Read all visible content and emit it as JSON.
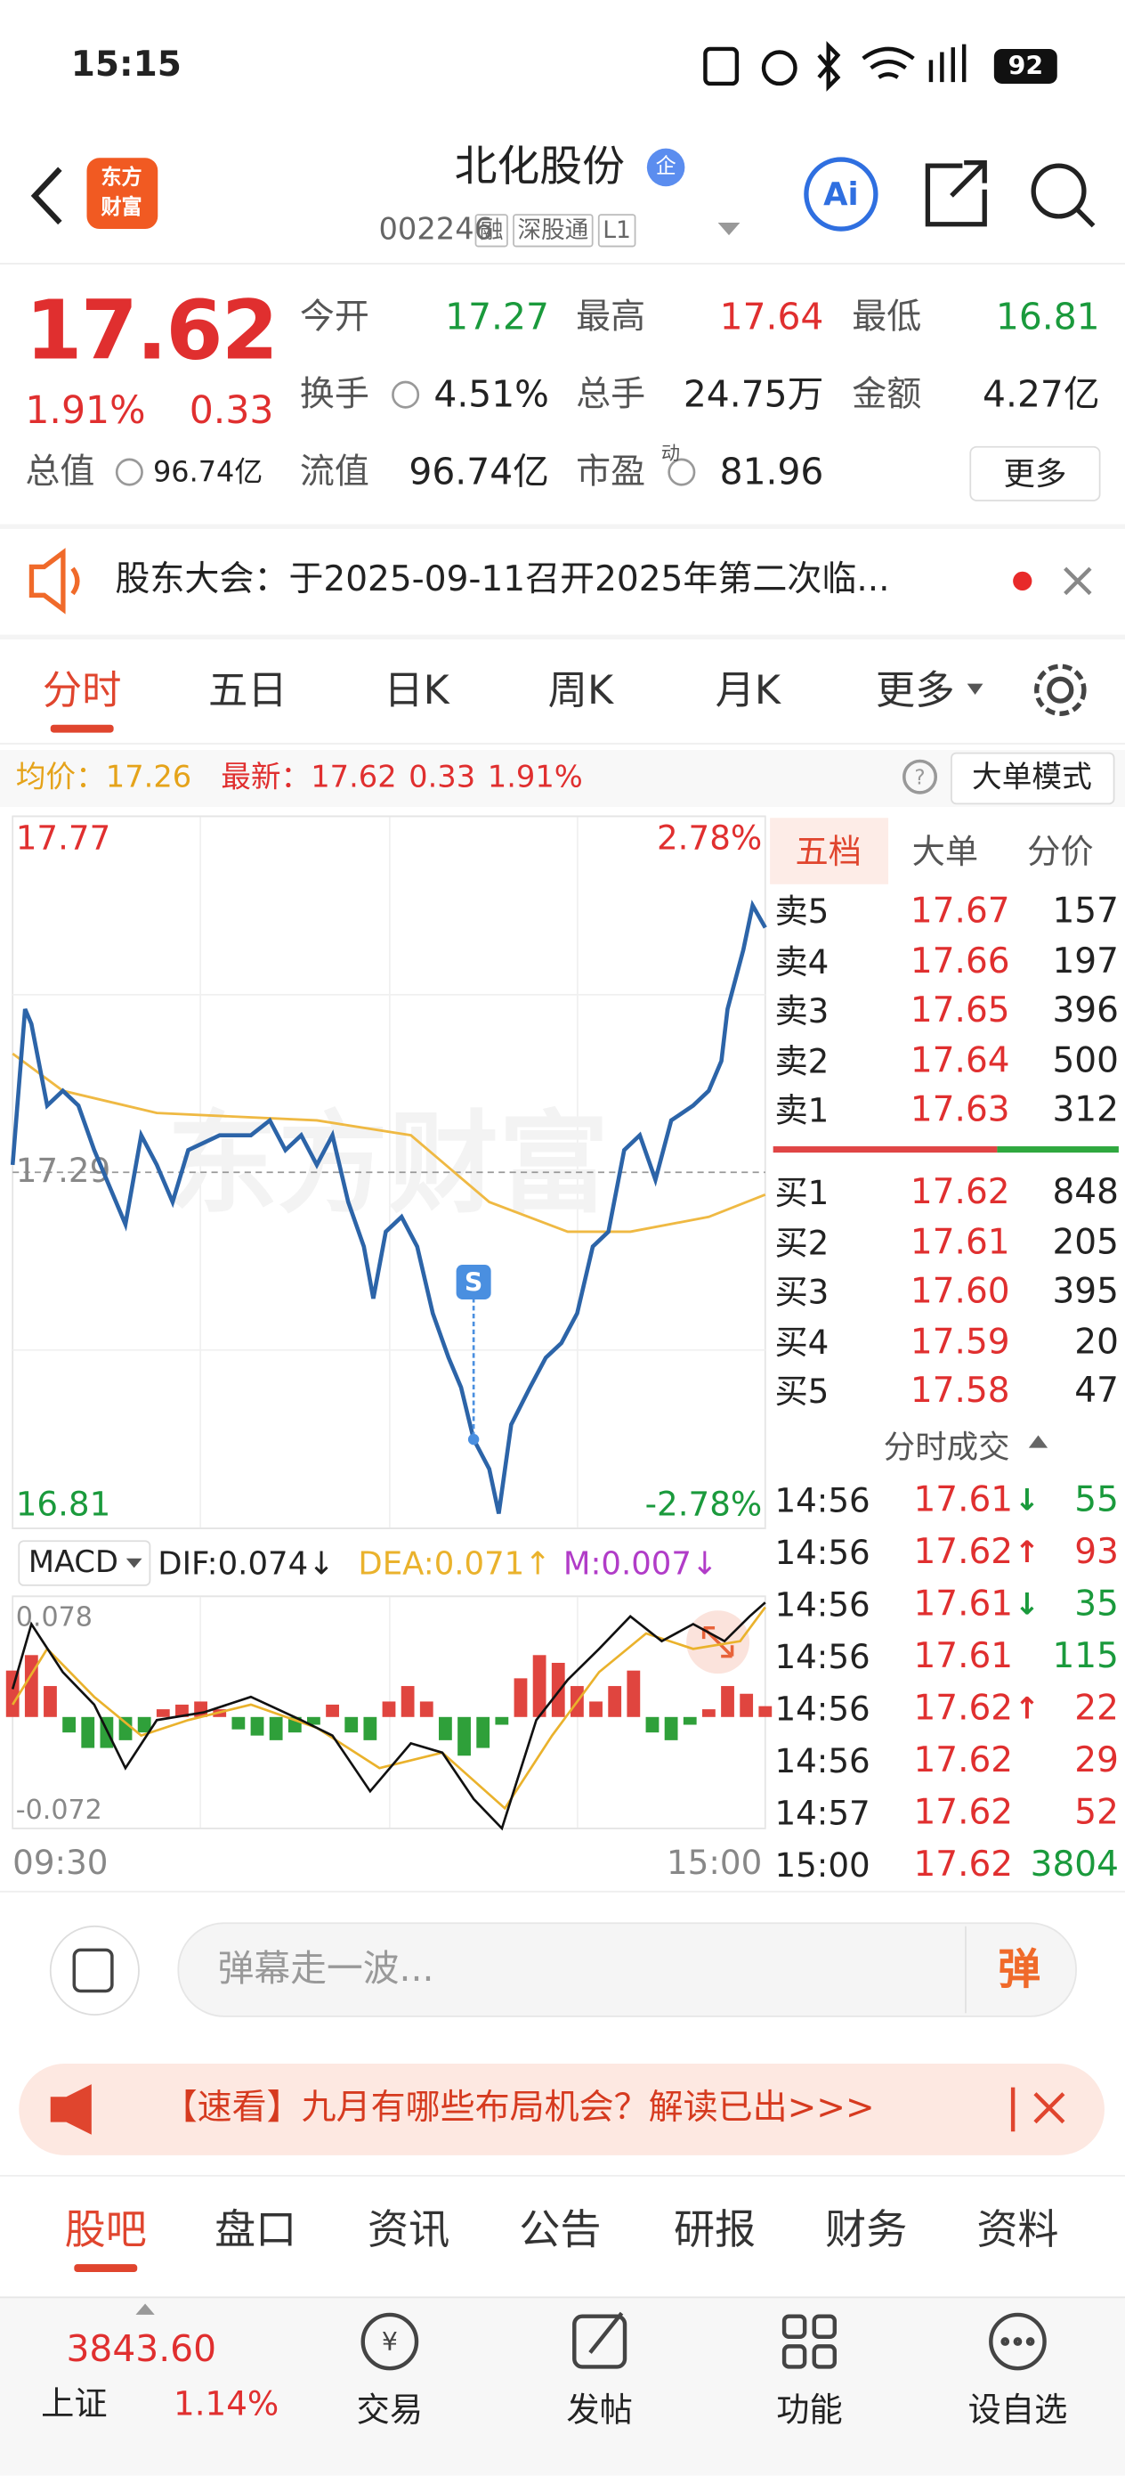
{
  "status": {
    "time": "15:15",
    "battery": "92"
  },
  "header": {
    "logo": [
      "东方",
      "财富"
    ],
    "title": "北化股份",
    "badge": "企",
    "code": "002246",
    "tags": [
      "融",
      "深股通",
      "L1"
    ]
  },
  "quote": {
    "price": "17.62",
    "pct": "1.91%",
    "change": "0.33",
    "total_label": "总值",
    "total_value": "96.74亿",
    "fields": [
      {
        "label": "今开",
        "value": "17.27"
      },
      {
        "label": "最高",
        "value": "17.64"
      },
      {
        "label": "最低",
        "value": "16.81"
      },
      {
        "label": "换手",
        "value": "4.51%"
      },
      {
        "label": "总手",
        "value": "24.75万"
      },
      {
        "label": "金额",
        "value": "4.27亿"
      },
      {
        "label": "流值",
        "value": "96.74亿"
      },
      {
        "label": "市盈",
        "sup": "动",
        "value": "81.96"
      }
    ],
    "more": "更多"
  },
  "notice": "股东大会：于2025-09-11召开2025年第二次临...",
  "tabs": [
    "分时",
    "五日",
    "日K",
    "周K",
    "月K",
    "更多"
  ],
  "info": {
    "avg_label": "均价：",
    "avg": "17.26",
    "latest_label": "最新：",
    "latest": "17.62",
    "change": "0.33",
    "pct": "1.91%",
    "mode": "大单模式"
  },
  "intraday": {
    "type": "line",
    "xlim": [
      0,
      240
    ],
    "ylim": [
      16.81,
      17.77
    ],
    "yticks": [
      16.81,
      17.29,
      17.77
    ],
    "xlabels": [
      "09:30",
      "15:00"
    ],
    "pct_top": "2.78%",
    "pct_bottom": "-2.78%",
    "watermark": "东方财富",
    "signal": "S",
    "series": [
      {
        "color": "#2c64a8",
        "x": [
          0,
          4,
          6,
          11,
          16,
          21,
          26,
          31,
          36,
          41,
          46,
          51,
          56,
          66,
          76,
          82,
          87,
          92,
          97,
          102,
          107,
          112,
          115,
          119,
          124,
          129,
          134,
          139,
          143,
          147,
          152,
          155,
          159,
          165,
          170,
          175,
          180,
          185,
          190,
          195,
          200,
          205,
          210,
          217,
          222,
          226,
          228,
          233,
          236,
          240
        ],
        "values": [
          17.3,
          17.51,
          17.49,
          17.38,
          17.4,
          17.38,
          17.32,
          17.27,
          17.22,
          17.34,
          17.3,
          17.25,
          17.32,
          17.34,
          17.34,
          17.36,
          17.32,
          17.34,
          17.3,
          17.34,
          17.25,
          17.19,
          17.12,
          17.21,
          17.23,
          17.19,
          17.1,
          17.04,
          17.0,
          16.93,
          16.89,
          16.83,
          16.95,
          17.0,
          17.04,
          17.06,
          17.1,
          17.19,
          17.21,
          17.32,
          17.34,
          17.28,
          17.36,
          17.38,
          17.4,
          17.44,
          17.51,
          17.59,
          17.65,
          17.62
        ]
      },
      {
        "color": "#efb943",
        "x": [
          0,
          16,
          46,
          97,
          127,
          152,
          177,
          197,
          222,
          240
        ],
        "values": [
          17.45,
          17.4,
          17.37,
          17.36,
          17.34,
          17.25,
          17.21,
          17.21,
          17.23,
          17.26
        ]
      }
    ]
  },
  "macd": {
    "type": "line",
    "selector": "MACD",
    "dif": "DIF:0.074↓",
    "dea": "DEA:0.071↑",
    "m": "M:0.007↓",
    "xlim": [
      0,
      240
    ],
    "ylim": [
      -0.072,
      0.078
    ],
    "yticks": [
      -0.072,
      0.078
    ],
    "series": [
      {
        "color": "#111111",
        "x": [
          0,
          6,
          16,
          26,
          36,
          46,
          61,
          76,
          92,
          102,
          114,
          127,
          137,
          147,
          156,
          167,
          177,
          187,
          197,
          207,
          217,
          227,
          235,
          240
        ],
        "values": [
          0.018,
          0.06,
          0.029,
          0.008,
          -0.033,
          -0.002,
          0.003,
          0.013,
          -0.002,
          -0.012,
          -0.048,
          -0.017,
          -0.023,
          -0.053,
          -0.072,
          -0.002,
          0.024,
          0.044,
          0.065,
          0.049,
          0.06,
          0.049,
          0.065,
          0.074
        ]
      },
      {
        "color": "#eab22c",
        "x": [
          0,
          11,
          26,
          41,
          56,
          76,
          97,
          117,
          137,
          157,
          172,
          187,
          202,
          217,
          232,
          240
        ],
        "values": [
          0.008,
          0.044,
          0.013,
          -0.012,
          -0.002,
          0.008,
          -0.007,
          -0.033,
          -0.023,
          -0.059,
          -0.012,
          0.029,
          0.054,
          0.044,
          0.049,
          0.071
        ]
      }
    ],
    "histogram": {
      "up_color": "#e0453f",
      "down_color": "#2fa03a",
      "x": [
        0,
        6,
        12,
        18,
        24,
        30,
        36,
        42,
        48,
        54,
        60,
        66,
        72,
        78,
        84,
        90,
        96,
        102,
        108,
        114,
        120,
        126,
        132,
        138,
        144,
        150,
        156,
        162,
        168,
        174,
        180,
        186,
        192,
        198,
        204,
        210,
        216,
        222,
        228,
        234,
        240
      ],
      "values": [
        0.03,
        0.04,
        0.02,
        -0.01,
        -0.02,
        -0.02,
        -0.015,
        -0.01,
        0.005,
        0.008,
        0.01,
        0.005,
        -0.008,
        -0.012,
        -0.015,
        -0.01,
        -0.005,
        0.008,
        -0.01,
        -0.015,
        0.01,
        0.02,
        0.01,
        -0.015,
        -0.025,
        -0.02,
        -0.005,
        0.025,
        0.04,
        0.035,
        0.02,
        0.01,
        0.02,
        0.03,
        -0.01,
        -0.015,
        -0.005,
        0.005,
        0.02,
        0.015,
        0.007
      ]
    }
  },
  "book": {
    "tabs": [
      "五档",
      "大单",
      "分价"
    ],
    "asks": [
      {
        "label": "卖5",
        "price": "17.67",
        "volume": "157"
      },
      {
        "label": "卖4",
        "price": "17.66",
        "volume": "197"
      },
      {
        "label": "卖3",
        "price": "17.65",
        "volume": "396"
      },
      {
        "label": "卖2",
        "price": "17.64",
        "volume": "500"
      },
      {
        "label": "卖1",
        "price": "17.63",
        "volume": "312"
      }
    ],
    "bids": [
      {
        "label": "买1",
        "price": "17.62",
        "volume": "848"
      },
      {
        "label": "买2",
        "price": "17.61",
        "volume": "205"
      },
      {
        "label": "买3",
        "price": "17.60",
        "volume": "395"
      },
      {
        "label": "买4",
        "price": "17.59",
        "volume": "20"
      },
      {
        "label": "买5",
        "price": "17.58",
        "volume": "47"
      }
    ],
    "trades_title": "分时成交",
    "trades": [
      {
        "time": "14:56",
        "price": "17.61",
        "arrow": "↓",
        "volume": "55",
        "color": "#1a9a3c"
      },
      {
        "time": "14:56",
        "price": "17.62",
        "arrow": "↑",
        "volume": "93",
        "color": "#e02f2f"
      },
      {
        "time": "14:56",
        "price": "17.61",
        "arrow": "↓",
        "volume": "35",
        "color": "#1a9a3c"
      },
      {
        "time": "14:56",
        "price": "17.61",
        "volume": "115",
        "color": "#1a9a3c"
      },
      {
        "time": "14:56",
        "price": "17.62",
        "arrow": "↑",
        "volume": "22",
        "color": "#e02f2f"
      },
      {
        "time": "14:56",
        "price": "17.62",
        "volume": "29",
        "color": "#e02f2f"
      },
      {
        "time": "14:57",
        "price": "17.62",
        "volume": "52",
        "color": "#e02f2f"
      },
      {
        "time": "15:00",
        "price": "17.62",
        "volume": "3804",
        "color": "#1a9a3c"
      }
    ]
  },
  "comment": {
    "placeholder": "弹幕走一波...",
    "button": "弹"
  },
  "banner": "【速看】九月有哪些布局机会？解读已出>>>",
  "bottom_tabs": [
    "股吧",
    "盘口",
    "资讯",
    "公告",
    "研报",
    "财务",
    "资料"
  ],
  "nav": {
    "index_value": "3843.60",
    "index_name": "上证",
    "index_pct": "1.14%",
    "items": [
      "交易",
      "发帖",
      "功能",
      "设自选"
    ]
  }
}
